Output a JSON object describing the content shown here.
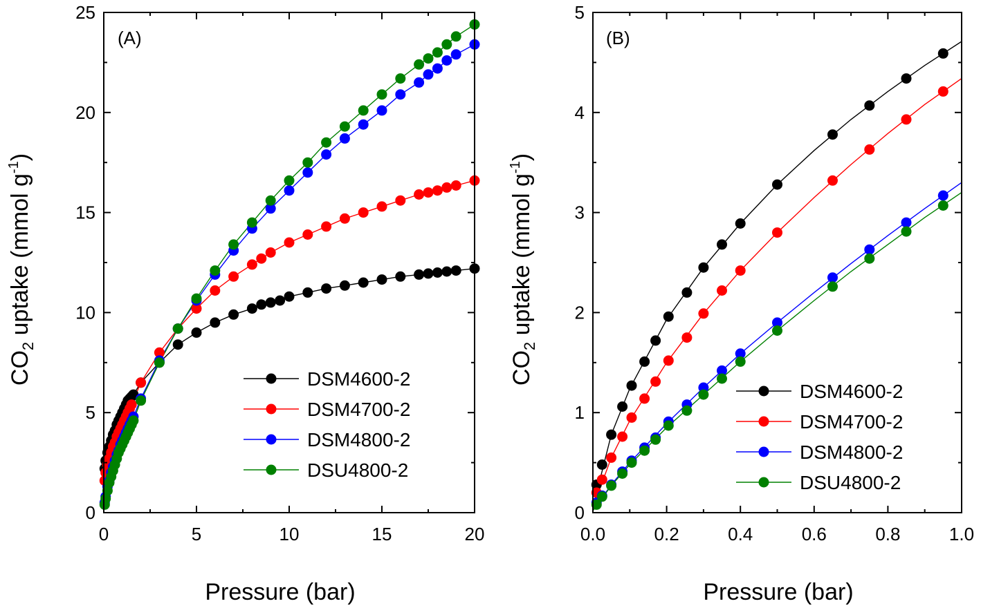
{
  "chart_data": [
    {
      "type": "scatter",
      "panel_label": "(A)",
      "xlabel": "Pressure (bar)",
      "ylabel": {
        "main": "CO",
        "sub": "2",
        "mid": " uptake (mmol g",
        "sup": "-1",
        "end": ")"
      },
      "xlim": [
        0,
        20
      ],
      "ylim": [
        0,
        25
      ],
      "x_ticks": [
        0,
        5,
        10,
        15,
        20
      ],
      "y_ticks": [
        0,
        5,
        10,
        15,
        20,
        25
      ],
      "x_tick_labels": [
        "0",
        "5",
        "10",
        "15",
        "20"
      ],
      "y_tick_labels": [
        "0",
        "5",
        "10",
        "15",
        "20",
        "25"
      ],
      "grid": false,
      "legend_position": "bottom-right",
      "series": [
        {
          "name": "DSM4600-2",
          "color": "#000000",
          "x": [
            0.05,
            0.1,
            0.2,
            0.3,
            0.4,
            0.5,
            0.6,
            0.7,
            0.8,
            0.9,
            1.0,
            1.1,
            1.2,
            1.3,
            1.4,
            1.5,
            1.6,
            2,
            3,
            4,
            5,
            6,
            7,
            8,
            8.5,
            9,
            9.5,
            10,
            11,
            12,
            13,
            14,
            15,
            16,
            17,
            17.5,
            18,
            18.5,
            19,
            20
          ],
          "y": [
            2.2,
            2.6,
            3.0,
            3.3,
            3.6,
            3.9,
            4.1,
            4.4,
            4.6,
            4.8,
            5.0,
            5.2,
            5.4,
            5.6,
            5.7,
            5.8,
            5.9,
            6.5,
            7.5,
            8.4,
            9.0,
            9.5,
            9.9,
            10.2,
            10.4,
            10.5,
            10.6,
            10.8,
            11.0,
            11.2,
            11.35,
            11.5,
            11.65,
            11.8,
            11.9,
            11.95,
            12.0,
            12.05,
            12.1,
            12.2
          ]
        },
        {
          "name": "DSM4700-2",
          "color": "#ff0000",
          "x": [
            0.05,
            0.1,
            0.2,
            0.3,
            0.4,
            0.5,
            0.6,
            0.7,
            0.8,
            0.9,
            1.0,
            1.1,
            1.2,
            1.3,
            1.4,
            1.5,
            2,
            3,
            4,
            5,
            6,
            7,
            8,
            8.5,
            9,
            10,
            11,
            12,
            13,
            14,
            15,
            16,
            17,
            17.5,
            18,
            18.5,
            19,
            20
          ],
          "y": [
            1.6,
            2.0,
            2.4,
            2.7,
            3.0,
            3.3,
            3.5,
            3.8,
            4.0,
            4.2,
            4.4,
            4.6,
            4.8,
            5.0,
            5.2,
            5.4,
            6.5,
            8.0,
            9.2,
            10.2,
            11.1,
            11.8,
            12.4,
            12.7,
            13.0,
            13.5,
            13.9,
            14.3,
            14.7,
            15.0,
            15.3,
            15.6,
            15.9,
            16.0,
            16.1,
            16.25,
            16.35,
            16.6
          ]
        },
        {
          "name": "DSM4800-2",
          "color": "#0000ff",
          "x": [
            0.05,
            0.1,
            0.2,
            0.3,
            0.4,
            0.5,
            0.6,
            0.7,
            0.8,
            0.9,
            1.0,
            1.1,
            1.2,
            1.3,
            1.4,
            1.5,
            1.6,
            2,
            3,
            4,
            5,
            6,
            7,
            8,
            9,
            10,
            11,
            12,
            13,
            14,
            15,
            16,
            17,
            17.5,
            18,
            18.5,
            19,
            20
          ],
          "y": [
            0.5,
            0.8,
            1.3,
            1.6,
            2.0,
            2.3,
            2.6,
            2.9,
            3.1,
            3.4,
            3.6,
            3.8,
            4.0,
            4.2,
            4.4,
            4.6,
            4.8,
            5.7,
            7.6,
            9.2,
            10.6,
            11.9,
            13.1,
            14.2,
            15.2,
            16.1,
            17.0,
            17.9,
            18.7,
            19.4,
            20.1,
            20.9,
            21.5,
            21.9,
            22.2,
            22.6,
            22.9,
            23.4
          ]
        },
        {
          "name": "DSU4800-2",
          "color": "#008000",
          "x": [
            0.05,
            0.1,
            0.2,
            0.3,
            0.4,
            0.5,
            0.6,
            0.7,
            0.8,
            0.9,
            1.0,
            1.1,
            1.2,
            1.3,
            1.4,
            1.5,
            1.6,
            2,
            3,
            4,
            5,
            6,
            7,
            8,
            9,
            10,
            11,
            12,
            13,
            14,
            15,
            16,
            17,
            17.5,
            18,
            18.5,
            19,
            20
          ],
          "y": [
            0.4,
            0.7,
            1.1,
            1.5,
            1.8,
            2.1,
            2.4,
            2.7,
            3.0,
            3.2,
            3.4,
            3.6,
            3.8,
            4.0,
            4.2,
            4.4,
            4.6,
            5.6,
            7.5,
            9.2,
            10.7,
            12.1,
            13.4,
            14.5,
            15.6,
            16.6,
            17.5,
            18.5,
            19.3,
            20.1,
            20.9,
            21.7,
            22.4,
            22.7,
            23.0,
            23.4,
            23.8,
            24.4
          ]
        }
      ]
    },
    {
      "type": "scatter",
      "panel_label": "(B)",
      "xlabel": "Pressure (bar)",
      "ylabel": {
        "main": "CO",
        "sub": "2",
        "mid": " uptake (mmol g",
        "sup": "-1",
        "end": ")"
      },
      "xlim": [
        0,
        1.0
      ],
      "ylim": [
        0,
        5
      ],
      "x_ticks": [
        0,
        0.2,
        0.4,
        0.6,
        0.8,
        1.0
      ],
      "y_ticks": [
        0,
        1,
        2,
        3,
        4,
        5
      ],
      "x_tick_labels": [
        "0.0",
        "0.2",
        "0.4",
        "0.6",
        "0.8",
        "1.0"
      ],
      "y_tick_labels": [
        "0",
        "1",
        "2",
        "3",
        "4",
        "5"
      ],
      "grid": false,
      "legend_position": "bottom-right",
      "series": [
        {
          "name": "DSM4600-2",
          "color": "#000000",
          "x": [
            0.01,
            0.025,
            0.05,
            0.08,
            0.105,
            0.14,
            0.17,
            0.205,
            0.255,
            0.3,
            0.35,
            0.4,
            0.5,
            0.65,
            0.75,
            0.85,
            0.95
          ],
          "y": [
            0.28,
            0.48,
            0.78,
            1.06,
            1.27,
            1.51,
            1.72,
            1.96,
            2.2,
            2.45,
            2.68,
            2.89,
            3.28,
            3.78,
            4.07,
            4.34,
            4.59
          ],
          "line_x": [
            0,
            0.05,
            0.1,
            0.2,
            0.3,
            0.4,
            0.5,
            0.6,
            0.7,
            0.8,
            0.9,
            1.0
          ],
          "line_y": [
            0.05,
            0.78,
            1.24,
            1.93,
            2.45,
            2.89,
            3.28,
            3.62,
            3.93,
            4.21,
            4.47,
            4.71
          ]
        },
        {
          "name": "DSM4700-2",
          "color": "#ff0000",
          "x": [
            0.01,
            0.025,
            0.05,
            0.08,
            0.105,
            0.14,
            0.17,
            0.205,
            0.255,
            0.3,
            0.35,
            0.4,
            0.5,
            0.65,
            0.75,
            0.85,
            0.95
          ],
          "y": [
            0.2,
            0.33,
            0.55,
            0.76,
            0.95,
            1.14,
            1.31,
            1.52,
            1.75,
            1.99,
            2.22,
            2.42,
            2.8,
            3.32,
            3.63,
            3.93,
            4.21
          ],
          "line_x": [
            0,
            0.05,
            0.1,
            0.2,
            0.3,
            0.4,
            0.5,
            0.6,
            0.7,
            0.8,
            0.9,
            1.0
          ],
          "line_y": [
            0.05,
            0.55,
            0.92,
            1.5,
            1.99,
            2.42,
            2.8,
            3.15,
            3.48,
            3.79,
            4.08,
            4.34
          ]
        },
        {
          "name": "DSM4800-2",
          "color": "#0000ff",
          "x": [
            0.01,
            0.025,
            0.05,
            0.08,
            0.105,
            0.14,
            0.17,
            0.205,
            0.255,
            0.3,
            0.35,
            0.4,
            0.5,
            0.65,
            0.75,
            0.85,
            0.95
          ],
          "y": [
            0.1,
            0.17,
            0.28,
            0.41,
            0.52,
            0.65,
            0.75,
            0.91,
            1.08,
            1.25,
            1.42,
            1.59,
            1.9,
            2.35,
            2.63,
            2.9,
            3.17
          ],
          "line_x": [
            0,
            0.05,
            0.1,
            0.2,
            0.3,
            0.4,
            0.5,
            0.6,
            0.7,
            0.8,
            0.9,
            1.0
          ],
          "line_y": [
            0.02,
            0.28,
            0.5,
            0.89,
            1.25,
            1.59,
            1.9,
            2.2,
            2.49,
            2.77,
            3.04,
            3.3
          ]
        },
        {
          "name": "DSU4800-2",
          "color": "#008000",
          "x": [
            0.01,
            0.025,
            0.05,
            0.08,
            0.105,
            0.14,
            0.17,
            0.205,
            0.255,
            0.3,
            0.35,
            0.4,
            0.5,
            0.65,
            0.75,
            0.85,
            0.95
          ],
          "y": [
            0.08,
            0.16,
            0.27,
            0.39,
            0.5,
            0.62,
            0.73,
            0.87,
            1.02,
            1.18,
            1.34,
            1.51,
            1.82,
            2.26,
            2.54,
            2.81,
            3.07
          ],
          "line_x": [
            0,
            0.05,
            0.1,
            0.2,
            0.3,
            0.4,
            0.5,
            0.6,
            0.7,
            0.8,
            0.9,
            1.0
          ],
          "line_y": [
            0.02,
            0.27,
            0.48,
            0.85,
            1.18,
            1.51,
            1.82,
            2.12,
            2.41,
            2.68,
            2.95,
            3.2
          ]
        }
      ]
    }
  ]
}
